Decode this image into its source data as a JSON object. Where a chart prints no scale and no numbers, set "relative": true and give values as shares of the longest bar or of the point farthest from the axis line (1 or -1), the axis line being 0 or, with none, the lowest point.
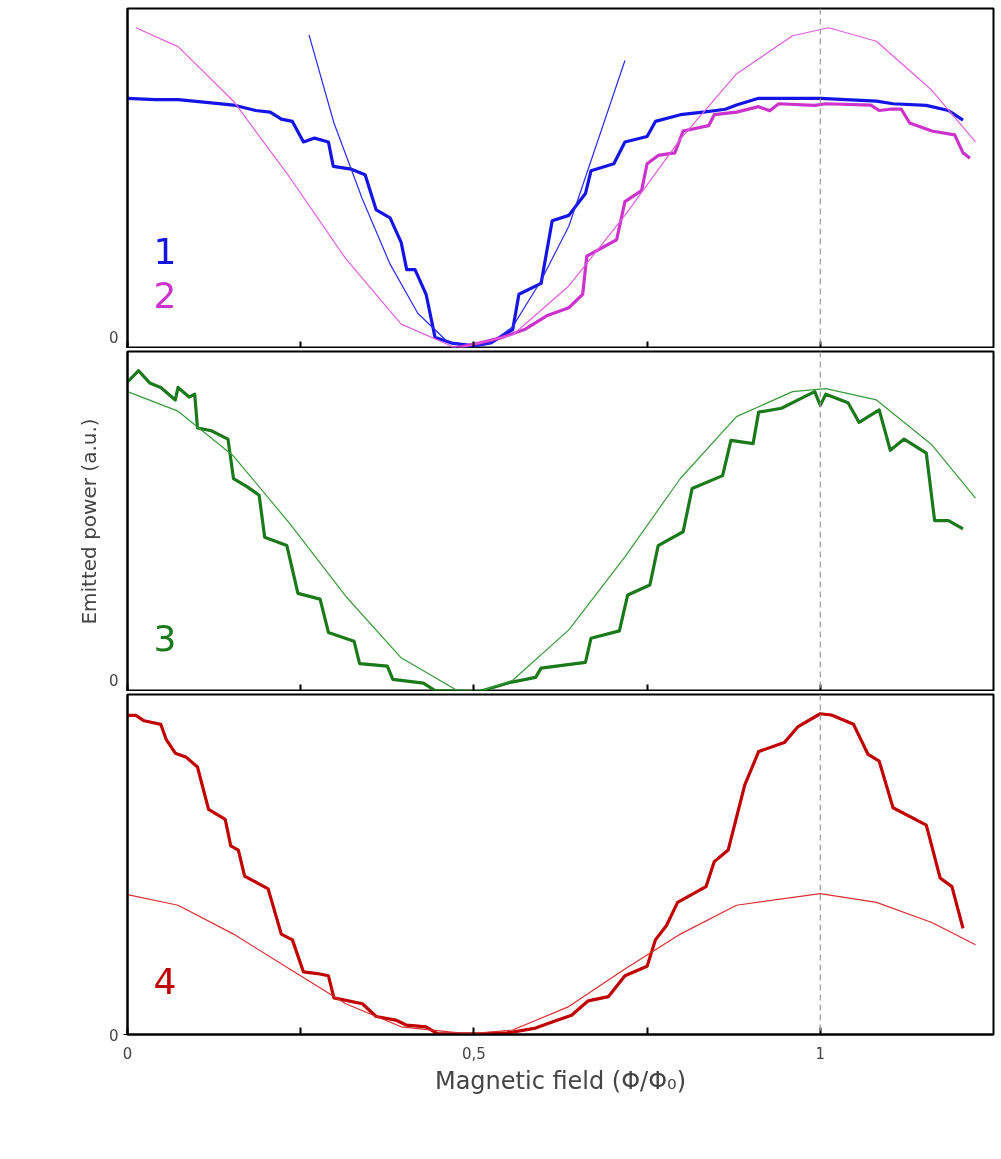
{
  "chart_data": [
    {
      "type": "line",
      "relative": true,
      "xlim": [
        0,
        1.25
      ],
      "xticks": [
        {
          "value": 0,
          "label": null
        },
        {
          "value": 0.25,
          "label": null
        },
        {
          "value": 0.5,
          "label": null
        },
        {
          "value": 0.75,
          "label": null
        },
        {
          "value": 1,
          "label": null
        }
      ],
      "annotations": [
        "0"
      ],
      "tick_labels": "y",
      "grid": false,
      "ref_lines": [
        {
          "axis": "x",
          "value": 1,
          "color": "#999999",
          "line_style": "dashed"
        }
      ],
      "series": [
        {
          "name": "1",
          "color": "#1414e6",
          "x": [
            0,
            0.04,
            0.073,
            0.121,
            0.153,
            0.185,
            0.206,
            0.222,
            0.238,
            0.254,
            0.27,
            0.29,
            0.297,
            0.323,
            0.343,
            0.359,
            0.379,
            0.395,
            0.403,
            0.415,
            0.431,
            0.444,
            0.468,
            0.5,
            0.524,
            0.556,
            0.565,
            0.597,
            0.613,
            0.637,
            0.661,
            0.669,
            0.702,
            0.718,
            0.75,
            0.762,
            0.798,
            0.831,
            0.863,
            0.879,
            0.911,
            1.0,
            1.081,
            1.105,
            1.153,
            1.185,
            1.206
          ],
          "values": [
            0.78,
            0.776,
            0.776,
            0.766,
            0.759,
            0.742,
            0.737,
            0.715,
            0.708,
            0.644,
            0.656,
            0.644,
            0.568,
            0.559,
            0.542,
            0.432,
            0.407,
            0.331,
            0.246,
            0.246,
            0.169,
            0.034,
            0.017,
            0.008,
            0.017,
            0.059,
            0.169,
            0.203,
            0.398,
            0.415,
            0.483,
            0.554,
            0.576,
            0.644,
            0.661,
            0.708,
            0.729,
            0.737,
            0.746,
            0.759,
            0.78,
            0.78,
            0.771,
            0.763,
            0.758,
            0.742,
            0.712
          ]
        },
        {
          "color": "#2a2af0",
          "x": [
            0.262,
            0.298,
            0.339,
            0.379,
            0.419,
            0.46,
            0.492,
            0.524,
            0.556,
            0.597,
            0.637,
            0.677,
            0.718
          ],
          "values": [
            0.978,
            0.703,
            0.466,
            0.263,
            0.11,
            0.025,
            0,
            0.017,
            0.068,
            0.212,
            0.381,
            0.636,
            0.898
          ]
        },
        {
          "name": "2",
          "color": "#cc33cc",
          "x": [
            0.468,
            0.508,
            0.54,
            0.573,
            0.605,
            0.637,
            0.657,
            0.663,
            0.706,
            0.718,
            0.742,
            0.75,
            0.766,
            0.79,
            0.802,
            0.839,
            0.847,
            0.879,
            0.911,
            0.927,
            0.94,
            0.992,
            1.008,
            1.073,
            1.085,
            1.101,
            1.117,
            1.129,
            1.161,
            1.194,
            1.206,
            1.216
          ],
          "values": [
            0,
            0.017,
            0.034,
            0.059,
            0.102,
            0.127,
            0.169,
            0.288,
            0.339,
            0.458,
            0.492,
            0.576,
            0.602,
            0.61,
            0.678,
            0.695,
            0.729,
            0.737,
            0.754,
            0.741,
            0.763,
            0.758,
            0.763,
            0.759,
            0.742,
            0.746,
            0.746,
            0.703,
            0.678,
            0.666,
            0.61,
            0.593
          ]
        },
        {
          "color": "#e060e0",
          "x": [
            0.012,
            0.073,
            0.153,
            0.234,
            0.315,
            0.395,
            0.476,
            0.556,
            0.637,
            0.718,
            0.798,
            0.879,
            0.96,
            1.012,
            1.081,
            1.161,
            1.224
          ],
          "values": [
            1.0,
            0.941,
            0.771,
            0.534,
            0.28,
            0.076,
            0,
            0.042,
            0.195,
            0.415,
            0.653,
            0.856,
            0.975,
            1.0,
            0.958,
            0.805,
            0.644
          ]
        }
      ]
    },
    {
      "type": "line",
      "relative": true,
      "ylabel": "Emitted power (a.u.)",
      "xlim": [
        0,
        1.25
      ],
      "xticks": [
        {
          "value": 0,
          "label": null
        },
        {
          "value": 0.25,
          "label": null
        },
        {
          "value": 0.5,
          "label": null
        },
        {
          "value": 0.75,
          "label": null
        },
        {
          "value": 1,
          "label": null
        }
      ],
      "annotations": [
        "0"
      ],
      "tick_labels": "y",
      "grid": false,
      "ref_lines": [
        {
          "axis": "x",
          "value": 1,
          "color": "#999999",
          "line_style": "dashed"
        }
      ],
      "series": [
        {
          "name": "3",
          "color": "#1a7a1a",
          "x": [
            0,
            0.016,
            0.032,
            0.048,
            0.069,
            0.073,
            0.089,
            0.097,
            0.101,
            0.121,
            0.145,
            0.153,
            0.173,
            0.19,
            0.198,
            0.23,
            0.246,
            0.278,
            0.29,
            0.327,
            0.335,
            0.375,
            0.383,
            0.427,
            0.444,
            0.508,
            0.548,
            0.589,
            0.597,
            0.661,
            0.669,
            0.71,
            0.722,
            0.754,
            0.766,
            0.802,
            0.815,
            0.859,
            0.871,
            0.903,
            0.911,
            0.944,
            0.968,
            0.992,
            1.0,
            1.008,
            1.04,
            1.056,
            1.085,
            1.101,
            1.121,
            1.153,
            1.165,
            1.185,
            1.206
          ],
          "values": [
            0.965,
            1.0,
            0.962,
            0.948,
            0.909,
            0.948,
            0.918,
            0.927,
            0.822,
            0.813,
            0.787,
            0.664,
            0.638,
            0.612,
            0.481,
            0.455,
            0.306,
            0.288,
            0.184,
            0.157,
            0.087,
            0.079,
            0.038,
            0.026,
            0.003,
            0,
            0.026,
            0.044,
            0.073,
            0.091,
            0.166,
            0.189,
            0.301,
            0.332,
            0.455,
            0.498,
            0.633,
            0.673,
            0.783,
            0.773,
            0.871,
            0.883,
            0.909,
            0.935,
            0.892,
            0.927,
            0.9,
            0.839,
            0.878,
            0.752,
            0.787,
            0.743,
            0.533,
            0.533,
            0.507
          ]
        },
        {
          "color": "#3a9a3a",
          "x": [
            0,
            0.073,
            0.153,
            0.234,
            0.315,
            0.395,
            0.476,
            0.508,
            0.556,
            0.637,
            0.718,
            0.798,
            0.879,
            0.96,
            1.008,
            1.081,
            1.161,
            1.224
          ],
          "values": [
            0.935,
            0.874,
            0.734,
            0.524,
            0.297,
            0.105,
            0.003,
            0,
            0.035,
            0.192,
            0.42,
            0.664,
            0.857,
            0.935,
            0.944,
            0.909,
            0.769,
            0.603
          ]
        }
      ]
    },
    {
      "type": "line",
      "relative": true,
      "xlabel": "Magnetic field (Φ/Φ₀)",
      "xlim": [
        0,
        1.25
      ],
      "xticks": [
        0,
        {
          "value": 0.25,
          "label": null
        },
        {
          "value": 0.5,
          "label": "0,5"
        },
        {
          "value": 0.75,
          "label": null
        },
        1
      ],
      "annotations": [
        "0"
      ],
      "grid": false,
      "ref_lines": [
        {
          "axis": "x",
          "value": 1,
          "color": "#999999",
          "line_style": "dashed"
        }
      ],
      "series": [
        {
          "name": "4",
          "color": "#c00000",
          "x": [
            0,
            0.012,
            0.024,
            0.048,
            0.056,
            0.069,
            0.085,
            0.101,
            0.117,
            0.141,
            0.149,
            0.16,
            0.169,
            0.203,
            0.222,
            0.238,
            0.254,
            0.274,
            0.29,
            0.298,
            0.339,
            0.359,
            0.387,
            0.403,
            0.431,
            0.448,
            0.508,
            0.548,
            0.589,
            0.617,
            0.641,
            0.665,
            0.694,
            0.718,
            0.75,
            0.762,
            0.778,
            0.794,
            0.835,
            0.847,
            0.867,
            0.891,
            0.911,
            0.948,
            0.968,
            1.0,
            1.016,
            1.048,
            1.069,
            1.085,
            1.105,
            1.153,
            1.173,
            1.19,
            1.206
          ],
          "values": [
            0.995,
            0.995,
            0.978,
            0.967,
            0.919,
            0.877,
            0.864,
            0.834,
            0.702,
            0.671,
            0.588,
            0.575,
            0.494,
            0.454,
            0.313,
            0.295,
            0.195,
            0.19,
            0.183,
            0.114,
            0.096,
            0.056,
            0.045,
            0.029,
            0.024,
            0.002,
            0.002,
            0.005,
            0.02,
            0.042,
            0.06,
            0.105,
            0.118,
            0.183,
            0.213,
            0.295,
            0.34,
            0.412,
            0.461,
            0.539,
            0.575,
            0.778,
            0.882,
            0.91,
            0.96,
            1.0,
            0.996,
            0.967,
            0.873,
            0.852,
            0.707,
            0.653,
            0.488,
            0.461,
            0.331
          ]
        },
        {
          "color": "#d83030",
          "x": [
            0,
            0.073,
            0.153,
            0.234,
            0.315,
            0.395,
            0.492,
            0.556,
            0.637,
            0.718,
            0.798,
            0.879,
            1.0,
            1.081,
            1.161,
            1.224
          ],
          "values": [
            0.436,
            0.403,
            0.313,
            0.204,
            0.096,
            0.024,
            0.002,
            0.014,
            0.087,
            0.204,
            0.313,
            0.403,
            0.439,
            0.412,
            0.349,
            0.28
          ]
        }
      ]
    }
  ]
}
